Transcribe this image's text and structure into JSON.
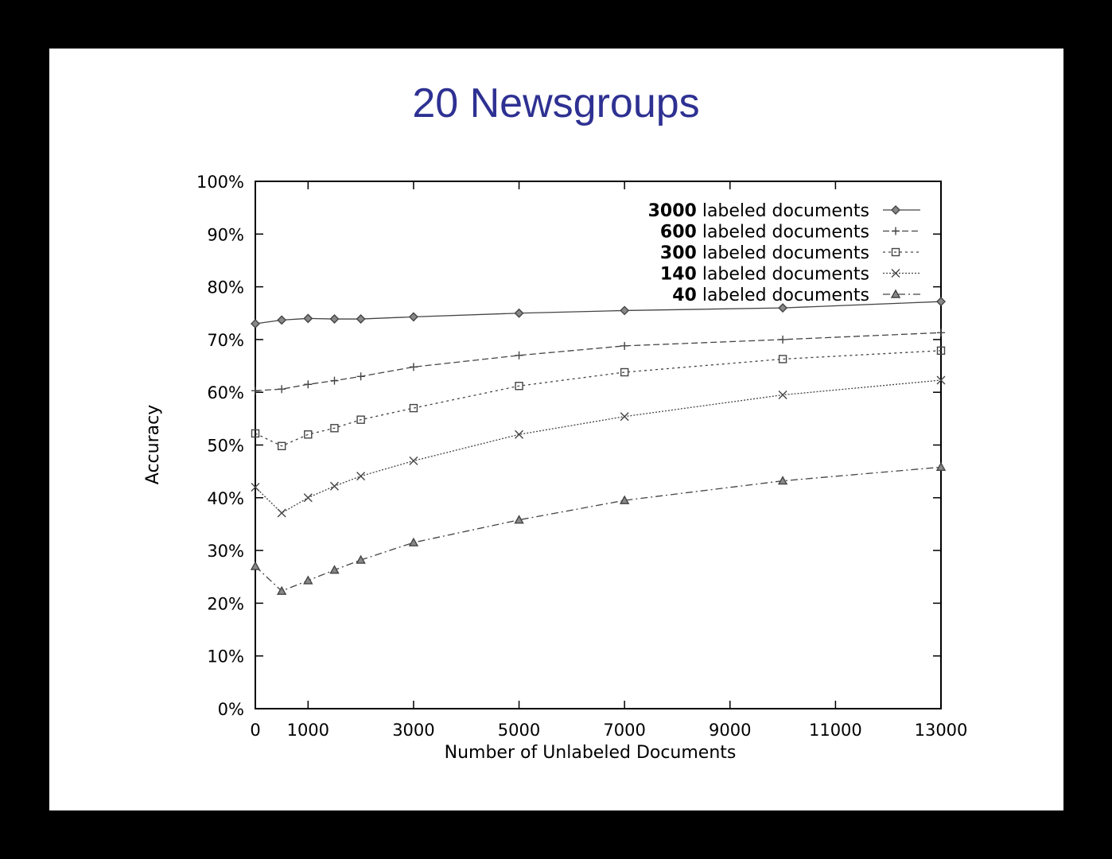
{
  "title": "20 Newsgroups",
  "chart_data": {
    "type": "line",
    "title": "20 Newsgroups",
    "xlabel": "Number of Unlabeled Documents",
    "ylabel": "Accuracy",
    "xlim": [
      0,
      13000
    ],
    "ylim": [
      0,
      100
    ],
    "x_ticks": [
      0,
      1000,
      3000,
      5000,
      7000,
      9000,
      11000,
      13000
    ],
    "x_tick_labels": [
      "0",
      "1000",
      "3000",
      "5000",
      "7000",
      "9000",
      "11000",
      "13000"
    ],
    "y_ticks": [
      0,
      10,
      20,
      30,
      40,
      50,
      60,
      70,
      80,
      90,
      100
    ],
    "y_tick_labels": [
      "0%",
      "10%",
      "20%",
      "30%",
      "40%",
      "50%",
      "60%",
      "70%",
      "80%",
      "90%",
      "100%"
    ],
    "grid": false,
    "legend_position": "top-right",
    "x": [
      0,
      500,
      1000,
      1500,
      2000,
      3000,
      5000,
      7000,
      10000,
      13000
    ],
    "series": [
      {
        "name": "3000 labeled documents",
        "bold_prefix": "3000",
        "label_suffix": " labeled documents",
        "marker": "diamond",
        "dash": "solid",
        "values": [
          73,
          73.7,
          74,
          73.9,
          73.9,
          74.3,
          75,
          75.5,
          76,
          77.2
        ]
      },
      {
        "name": "600 labeled documents",
        "bold_prefix": "600",
        "label_suffix": " labeled documents",
        "marker": "plus",
        "dash": "dashed",
        "values": [
          60.3,
          60.6,
          61.5,
          62.2,
          63,
          64.8,
          67,
          68.8,
          70,
          71.3
        ]
      },
      {
        "name": "300 labeled documents",
        "bold_prefix": "300",
        "label_suffix": " labeled documents",
        "marker": "square",
        "dash": "dotted",
        "values": [
          52.2,
          49.8,
          52,
          53.2,
          54.8,
          57,
          61.2,
          63.8,
          66.3,
          67.9
        ]
      },
      {
        "name": "140 labeled documents",
        "bold_prefix": "140",
        "label_suffix": " labeled documents",
        "marker": "x",
        "dash": "fine-dotted",
        "values": [
          42,
          37.1,
          40,
          42.2,
          44.1,
          47,
          52,
          55.4,
          59.5,
          62.3
        ]
      },
      {
        "name": "40 labeled documents",
        "bold_prefix": "40",
        "label_suffix": " labeled documents",
        "marker": "triangle",
        "dash": "dash-dot",
        "values": [
          27,
          22.3,
          24.3,
          26.3,
          28.2,
          31.5,
          35.8,
          39.5,
          43.2,
          45.8
        ]
      }
    ]
  }
}
